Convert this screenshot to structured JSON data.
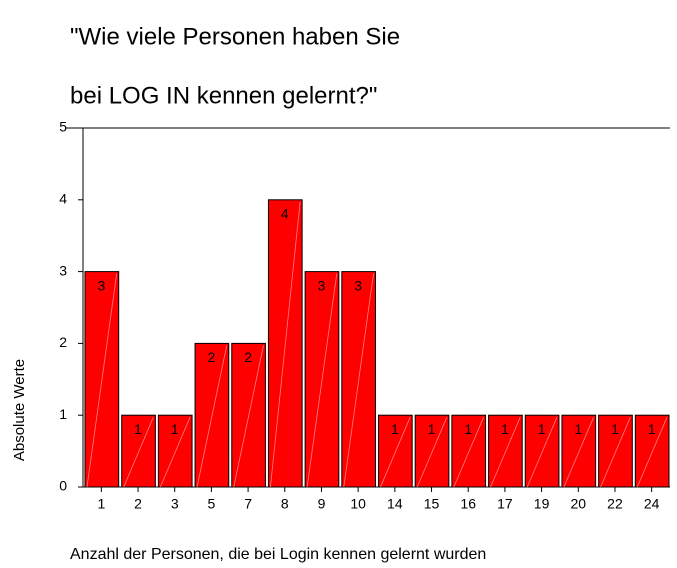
{
  "chart_data": {
    "type": "bar",
    "title": [
      "\"Wie viele Personen haben Sie",
      "bei LOG IN kennen gelernt?\""
    ],
    "categories": [
      "1",
      "2",
      "3",
      "5",
      "7",
      "8",
      "9",
      "10",
      "14",
      "15",
      "16",
      "17",
      "19",
      "20",
      "22",
      "24"
    ],
    "values": [
      3,
      1,
      1,
      2,
      2,
      4,
      3,
      3,
      1,
      1,
      1,
      1,
      1,
      1,
      1,
      1
    ],
    "color": "#ff0000",
    "ylim": [
      0,
      5
    ],
    "yticks": [
      0,
      1,
      2,
      3,
      4,
      5
    ],
    "y_label": "Absolute Werte",
    "x_label": "Anzahl der Personen, die bei Login kennen gelernt wurden"
  }
}
